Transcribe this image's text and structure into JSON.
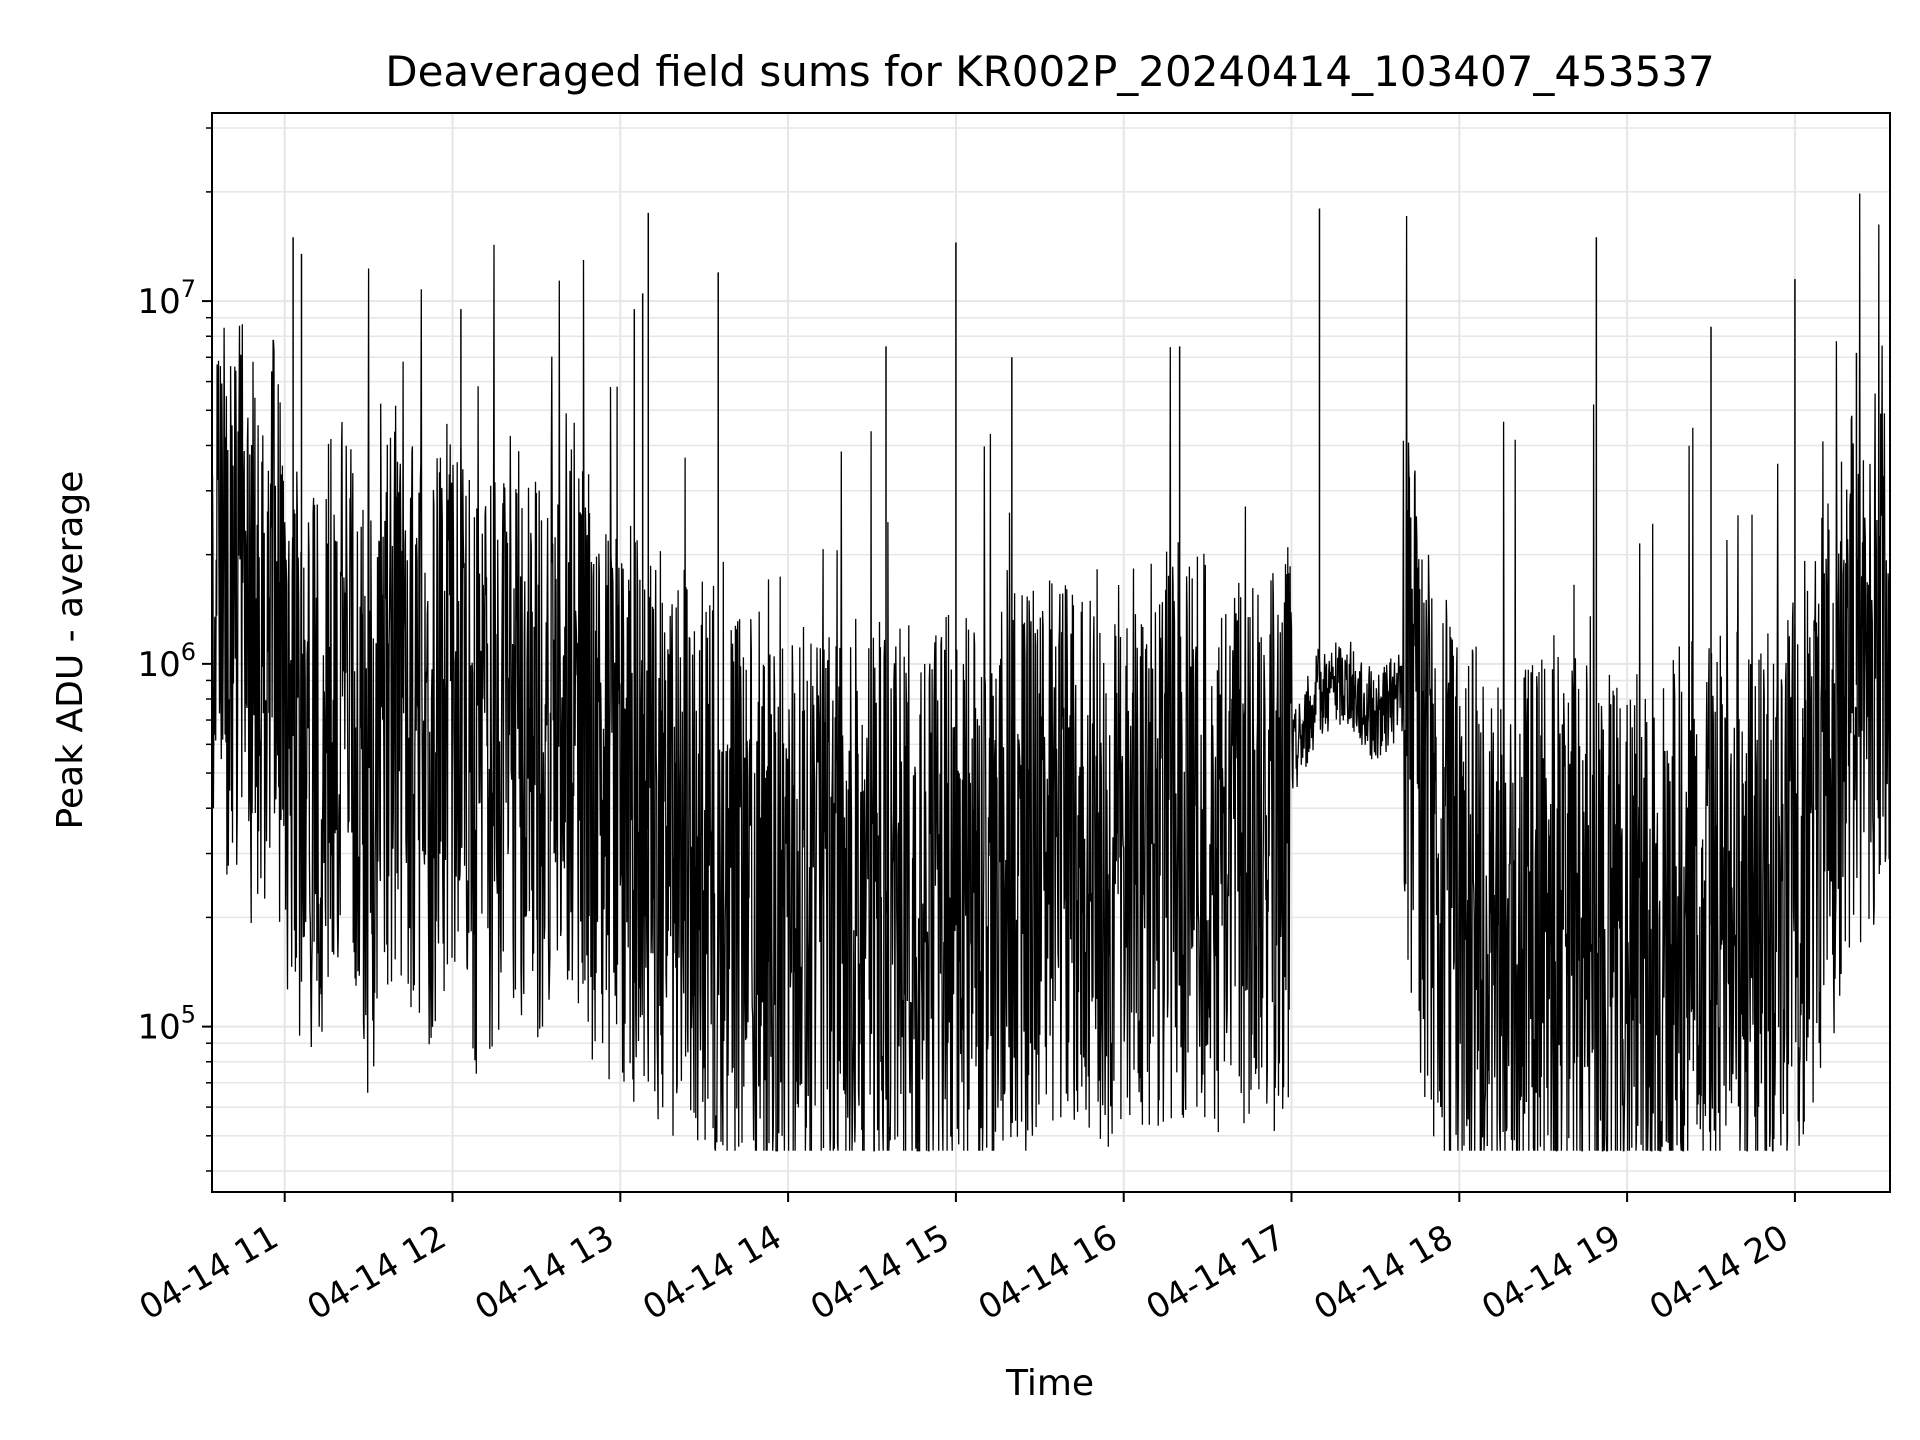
{
  "chart_data": {
    "type": "line",
    "title": "Deaveraged field sums for KR002P_20240414_103407_453537",
    "xlabel": "Time",
    "ylabel": "Peak ADU - average",
    "yscale": "log",
    "ylim": [
      35000,
      33000000
    ],
    "xlim": [
      "2024-04-14 10:34",
      "2024-04-14 20:34"
    ],
    "x_ticks": [
      "04-14 11",
      "04-14 12",
      "04-14 13",
      "04-14 14",
      "04-14 15",
      "04-14 16",
      "04-14 17",
      "04-14 18",
      "04-14 19",
      "04-14 20"
    ],
    "y_ticks": [
      {
        "base": "10",
        "exp": "5",
        "value": 100000
      },
      {
        "base": "10",
        "exp": "6",
        "value": 1000000
      },
      {
        "base": "10",
        "exp": "7",
        "value": 10000000
      }
    ],
    "grid": true,
    "line_color": "#000000",
    "grid_color": "#e6e6e6",
    "series": [
      {
        "points": [
          [
            "2024-04-14 10:34",
            2000000
          ],
          [
            "2024-04-14 10:40",
            1300000
          ],
          [
            "2024-04-14 10:45",
            1800000
          ],
          [
            "2024-04-14 10:50",
            900000
          ],
          [
            "2024-04-14 10:55",
            1500000
          ],
          [
            "2024-04-14 11:00",
            700000
          ],
          [
            "2024-04-14 11:10",
            500000
          ],
          [
            "2024-04-14 11:20",
            800000
          ],
          [
            "2024-04-14 11:30",
            400000
          ],
          [
            "2024-04-14 11:40",
            900000
          ],
          [
            "2024-04-14 11:50",
            500000
          ],
          [
            "2024-04-14 12:00",
            800000
          ],
          [
            "2024-04-14 12:10",
            400000
          ],
          [
            "2024-04-14 12:20",
            700000
          ],
          [
            "2024-04-14 12:30",
            500000
          ],
          [
            "2024-04-14 12:40",
            900000
          ],
          [
            "2024-04-14 12:50",
            500000
          ],
          [
            "2024-04-14 13:00",
            400000
          ],
          [
            "2024-04-14 13:10",
            350000
          ],
          [
            "2024-04-14 13:20",
            300000
          ],
          [
            "2024-04-14 13:30",
            280000
          ],
          [
            "2024-04-14 13:40",
            250000
          ],
          [
            "2024-04-14 13:50",
            220000
          ],
          [
            "2024-04-14 14:00",
            200000
          ],
          [
            "2024-04-14 14:20",
            220000
          ],
          [
            "2024-04-14 14:40",
            200000
          ],
          [
            "2024-04-14 15:00",
            220000
          ],
          [
            "2024-04-14 15:20",
            250000
          ],
          [
            "2024-04-14 15:40",
            280000
          ],
          [
            "2024-04-14 16:00",
            300000
          ],
          [
            "2024-04-14 16:20",
            350000
          ],
          [
            "2024-04-14 16:40",
            300000
          ],
          [
            "2024-04-14 16:58",
            300000
          ],
          [
            "2024-04-14 17:00",
            550000
          ],
          [
            "2024-04-14 17:10",
            850000
          ],
          [
            "2024-04-14 17:20",
            900000
          ],
          [
            "2024-04-14 17:30",
            700000
          ],
          [
            "2024-04-14 17:40",
            850000
          ],
          [
            "2024-04-14 17:50",
            300000
          ],
          [
            "2024-04-14 18:00",
            200000
          ],
          [
            "2024-04-14 18:20",
            150000
          ],
          [
            "2024-04-14 18:40",
            180000
          ],
          [
            "2024-04-14 19:00",
            150000
          ],
          [
            "2024-04-14 19:20",
            180000
          ],
          [
            "2024-04-14 19:40",
            200000
          ],
          [
            "2024-04-14 20:00",
            250000
          ],
          [
            "2024-04-14 20:20",
            800000
          ],
          [
            "2024-04-14 20:34",
            1500000
          ]
        ]
      }
    ],
    "spikes": [
      [
        "2024-04-14 11:03",
        15000000
      ],
      [
        "2024-04-14 11:06",
        13500000
      ],
      [
        "2024-04-14 12:03",
        9500000
      ],
      [
        "2024-04-14 13:05",
        9500000
      ],
      [
        "2024-04-14 13:08",
        10500000
      ],
      [
        "2024-04-14 13:10",
        17500000
      ],
      [
        "2024-04-14 13:35",
        12000000
      ],
      [
        "2024-04-14 14:35",
        7500000
      ],
      [
        "2024-04-14 15:00",
        14500000
      ],
      [
        "2024-04-14 15:20",
        7000000
      ],
      [
        "2024-04-14 16:20",
        7500000
      ],
      [
        "2024-04-14 17:10",
        18000000
      ],
      [
        "2024-04-14 18:49",
        15000000
      ],
      [
        "2024-04-14 19:30",
        8500000
      ],
      [
        "2024-04-14 20:00",
        11500000
      ],
      [
        "2024-04-14 20:22",
        7200000
      ]
    ]
  }
}
